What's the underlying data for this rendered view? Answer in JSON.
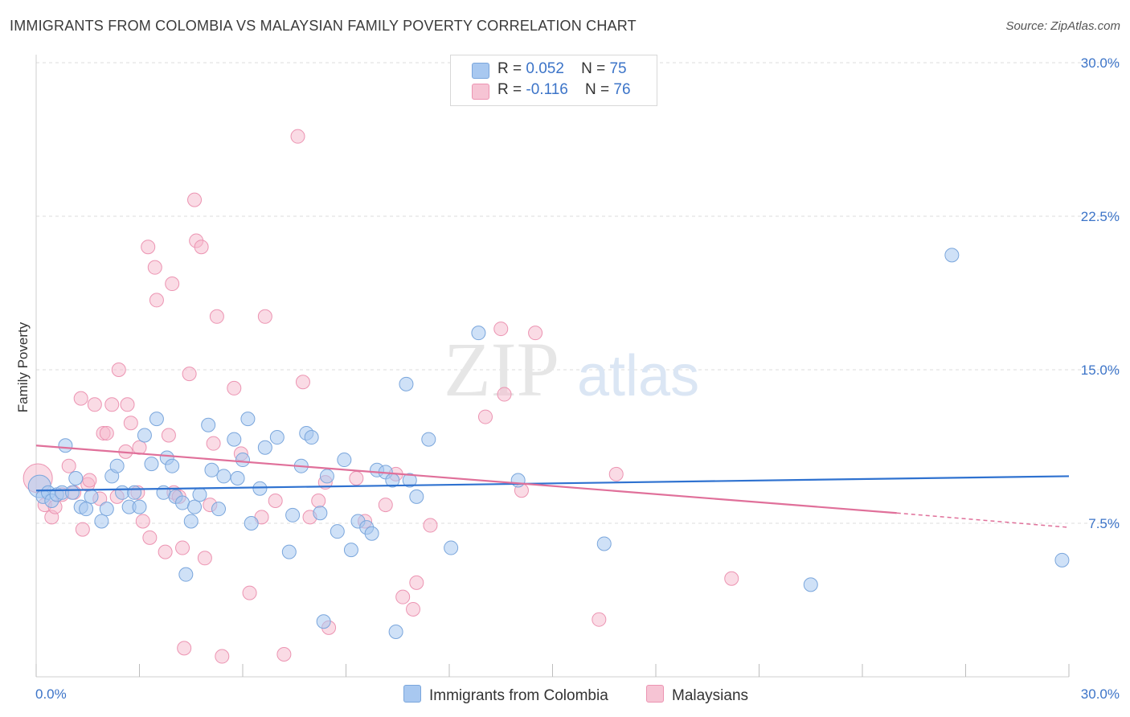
{
  "title": "IMMIGRANTS FROM COLOMBIA VS MALAYSIAN FAMILY POVERTY CORRELATION CHART",
  "source": "Source: ZipAtlas.com",
  "watermark": {
    "zip": "ZIP",
    "atlas": "atlas"
  },
  "legend": {
    "rows": [
      {
        "r_label": "R =",
        "r_value": "0.052",
        "n_label": "N =",
        "n_value": "75"
      },
      {
        "r_label": "R =",
        "r_value": "-0.116",
        "n_label": "N =",
        "n_value": "76"
      }
    ]
  },
  "bottom_legend": [
    "Immigrants from Colombia",
    "Malaysians"
  ],
  "colors": {
    "blue_fill": "#a8c8f0",
    "blue_stroke": "#7aa6dc",
    "blue_line": "#2f72d0",
    "pink_fill": "#f6b8cc",
    "pink_stroke": "#ec94b2",
    "pink_line": "#e0709a",
    "tick_label": "#3c74c8",
    "grid": "#dcdcdc"
  },
  "chart_data": {
    "type": "scatter",
    "title": "IMMIGRANTS FROM COLOMBIA VS MALAYSIAN FAMILY POVERTY CORRELATION CHART",
    "xlabel": "",
    "ylabel": "Family Poverty",
    "xlim": [
      0,
      30
    ],
    "ylim": [
      0,
      30
    ],
    "x_tick_labels": [
      "0.0%",
      "30.0%"
    ],
    "y_ticks": [
      7.5,
      15.0,
      22.5,
      30.0
    ],
    "y_tick_labels": [
      "7.5%",
      "15.0%",
      "22.5%",
      "30.0%"
    ],
    "grid": true,
    "legend_position": "top-center",
    "series": [
      {
        "name": "Immigrants from Colombia",
        "r": 0.052,
        "n": 75,
        "trend": {
          "x": [
            0,
            30
          ],
          "y": [
            9.1,
            9.8
          ]
        },
        "points": [
          [
            0.1,
            9.3
          ],
          [
            0.2,
            8.8
          ],
          [
            0.35,
            9.0
          ],
          [
            0.45,
            8.6
          ],
          [
            0.6,
            8.9
          ],
          [
            0.75,
            9.0
          ],
          [
            0.85,
            11.3
          ],
          [
            1.05,
            9.0
          ],
          [
            1.15,
            9.7
          ],
          [
            1.3,
            8.3
          ],
          [
            1.45,
            8.2
          ],
          [
            1.6,
            8.8
          ],
          [
            1.9,
            7.6
          ],
          [
            2.05,
            8.2
          ],
          [
            2.2,
            9.8
          ],
          [
            2.35,
            10.3
          ],
          [
            2.5,
            9.0
          ],
          [
            2.7,
            8.3
          ],
          [
            2.85,
            9.0
          ],
          [
            3.0,
            8.3
          ],
          [
            3.15,
            11.8
          ],
          [
            3.35,
            10.4
          ],
          [
            3.5,
            12.6
          ],
          [
            3.7,
            9.0
          ],
          [
            3.8,
            10.7
          ],
          [
            3.95,
            10.3
          ],
          [
            4.05,
            8.8
          ],
          [
            4.25,
            8.5
          ],
          [
            4.35,
            5.0
          ],
          [
            4.5,
            7.6
          ],
          [
            4.6,
            8.3
          ],
          [
            4.75,
            8.9
          ],
          [
            5.0,
            12.3
          ],
          [
            5.1,
            10.1
          ],
          [
            5.3,
            8.2
          ],
          [
            5.45,
            9.8
          ],
          [
            5.75,
            11.6
          ],
          [
            5.85,
            9.7
          ],
          [
            6.0,
            10.6
          ],
          [
            6.15,
            12.6
          ],
          [
            6.25,
            7.5
          ],
          [
            6.5,
            9.2
          ],
          [
            6.65,
            11.2
          ],
          [
            7.0,
            11.7
          ],
          [
            7.35,
            6.1
          ],
          [
            7.45,
            7.9
          ],
          [
            7.7,
            10.3
          ],
          [
            7.85,
            11.9
          ],
          [
            8.0,
            11.7
          ],
          [
            8.25,
            8.0
          ],
          [
            8.35,
            2.7
          ],
          [
            8.45,
            9.8
          ],
          [
            8.75,
            7.1
          ],
          [
            8.95,
            10.6
          ],
          [
            9.15,
            6.2
          ],
          [
            9.35,
            7.6
          ],
          [
            9.6,
            7.3
          ],
          [
            9.75,
            7.0
          ],
          [
            9.9,
            10.1
          ],
          [
            10.15,
            10.0
          ],
          [
            10.35,
            9.6
          ],
          [
            10.45,
            2.2
          ],
          [
            10.75,
            14.3
          ],
          [
            10.85,
            9.6
          ],
          [
            11.05,
            8.8
          ],
          [
            11.4,
            11.6
          ],
          [
            12.05,
            6.3
          ],
          [
            12.85,
            16.8
          ],
          [
            14.0,
            9.6
          ],
          [
            16.5,
            6.5
          ],
          [
            22.5,
            4.5
          ],
          [
            26.6,
            20.6
          ],
          [
            29.8,
            5.7
          ]
        ]
      },
      {
        "name": "Malaysians",
        "r": -0.116,
        "n": 76,
        "trend": {
          "x": [
            0,
            25
          ],
          "y": [
            11.3,
            8.0
          ],
          "dashed_to": {
            "x": 30,
            "y": 7.3
          }
        },
        "points": [
          [
            0.05,
            9.7
          ],
          [
            0.25,
            8.4
          ],
          [
            0.45,
            7.8
          ],
          [
            0.55,
            8.3
          ],
          [
            0.75,
            8.9
          ],
          [
            0.95,
            10.3
          ],
          [
            1.1,
            9.0
          ],
          [
            1.3,
            13.6
          ],
          [
            1.35,
            7.2
          ],
          [
            1.5,
            9.4
          ],
          [
            1.55,
            9.6
          ],
          [
            1.7,
            13.3
          ],
          [
            1.85,
            8.7
          ],
          [
            1.95,
            11.9
          ],
          [
            2.05,
            11.9
          ],
          [
            2.2,
            13.3
          ],
          [
            2.35,
            8.8
          ],
          [
            2.4,
            15.0
          ],
          [
            2.6,
            11.0
          ],
          [
            2.65,
            13.3
          ],
          [
            2.75,
            12.4
          ],
          [
            2.95,
            9.0
          ],
          [
            3.0,
            11.2
          ],
          [
            3.1,
            7.6
          ],
          [
            3.25,
            21.0
          ],
          [
            3.3,
            6.8
          ],
          [
            3.45,
            20.0
          ],
          [
            3.5,
            18.4
          ],
          [
            3.75,
            6.1
          ],
          [
            3.85,
            11.8
          ],
          [
            3.95,
            19.2
          ],
          [
            4.0,
            9.0
          ],
          [
            4.15,
            8.8
          ],
          [
            4.25,
            6.3
          ],
          [
            4.3,
            1.4
          ],
          [
            4.45,
            14.8
          ],
          [
            4.6,
            23.3
          ],
          [
            4.65,
            21.3
          ],
          [
            4.8,
            21.0
          ],
          [
            4.9,
            5.8
          ],
          [
            5.05,
            8.4
          ],
          [
            5.15,
            11.4
          ],
          [
            5.25,
            17.6
          ],
          [
            5.4,
            1.0
          ],
          [
            5.75,
            14.1
          ],
          [
            5.95,
            10.9
          ],
          [
            6.2,
            4.1
          ],
          [
            6.55,
            7.8
          ],
          [
            6.65,
            17.6
          ],
          [
            6.95,
            8.6
          ],
          [
            7.2,
            1.1
          ],
          [
            7.6,
            26.4
          ],
          [
            7.75,
            14.4
          ],
          [
            7.95,
            7.8
          ],
          [
            8.2,
            8.6
          ],
          [
            8.4,
            9.5
          ],
          [
            8.5,
            2.4
          ],
          [
            9.3,
            9.7
          ],
          [
            9.55,
            7.6
          ],
          [
            10.15,
            8.4
          ],
          [
            10.45,
            9.9
          ],
          [
            10.65,
            3.9
          ],
          [
            10.95,
            3.3
          ],
          [
            11.05,
            4.6
          ],
          [
            11.45,
            7.4
          ],
          [
            13.05,
            12.7
          ],
          [
            13.5,
            17.0
          ],
          [
            13.6,
            13.8
          ],
          [
            14.1,
            9.1
          ],
          [
            14.5,
            16.8
          ],
          [
            16.35,
            2.8
          ],
          [
            16.85,
            9.9
          ],
          [
            20.2,
            4.8
          ]
        ]
      }
    ]
  }
}
